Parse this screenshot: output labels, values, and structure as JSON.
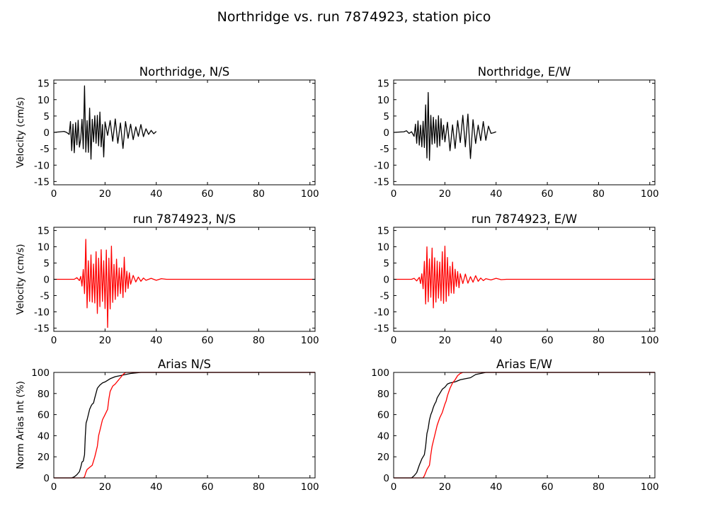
{
  "figure": {
    "title": "Northridge vs. run 7874923, station pico",
    "colors": {
      "recorded": "#000000",
      "simulated": "#ff0000"
    }
  },
  "chart_data": [
    {
      "type": "line",
      "title": "Northridge, N/S",
      "ylabel": "Velocity (cm/s)",
      "xlim": [
        0,
        102
      ],
      "ylim": [
        -16,
        16
      ],
      "xticks": [
        "0",
        "20",
        "40",
        "60",
        "80",
        "100"
      ],
      "yticks": [
        "15",
        "10",
        "5",
        "0",
        "-5",
        "-10",
        "-15"
      ],
      "series": [
        {
          "color": "#000000",
          "x": [
            0,
            4,
            5,
            6,
            6.5,
            7,
            7.5,
            8,
            8.5,
            9,
            9.5,
            10,
            10.5,
            11,
            11.5,
            12,
            12.5,
            13,
            13.5,
            14,
            14.5,
            15,
            15.5,
            16,
            16.5,
            17,
            17.5,
            18,
            18.5,
            19,
            19.5,
            20,
            21,
            22,
            23,
            24,
            25,
            26,
            27,
            28,
            29,
            30,
            31,
            32,
            33,
            34,
            35,
            36,
            37,
            38,
            39,
            40
          ],
          "y": [
            0,
            0.3,
            0,
            -0.6,
            3.3,
            -5.6,
            2.5,
            -6.2,
            3,
            -3.8,
            3.7,
            -4.5,
            -2,
            4,
            -5,
            14.2,
            -6,
            3.6,
            -6.1,
            7.4,
            -8.2,
            4,
            -2.9,
            5.1,
            -3.3,
            5.2,
            -4.1,
            6.2,
            -4.4,
            2.4,
            -7.5,
            3.2,
            -0.9,
            3.6,
            -2.7,
            4.1,
            -3.3,
            2.9,
            -4.9,
            3.3,
            -1.8,
            2.5,
            -2.2,
            1.7,
            -1.2,
            2.4,
            -1.3,
            1.1,
            -0.6,
            0.6,
            -0.4,
            0.3
          ]
        }
      ]
    },
    {
      "type": "line",
      "title": "Northridge, E/W",
      "ylabel": "",
      "xlim": [
        0,
        102
      ],
      "ylim": [
        -16,
        16
      ],
      "xticks": [
        "0",
        "20",
        "40",
        "60",
        "80",
        "100"
      ],
      "yticks": [
        "15",
        "10",
        "5",
        "0",
        "-5",
        "-10",
        "-15"
      ],
      "series": [
        {
          "color": "#000000",
          "x": [
            0,
            4,
            5,
            6,
            7,
            8,
            8.5,
            9,
            9.5,
            10,
            10.5,
            11,
            11.5,
            12,
            12.5,
            13,
            13.5,
            14,
            14.5,
            15,
            15.5,
            16,
            16.5,
            17,
            17.5,
            18,
            18.5,
            19,
            19.5,
            20,
            21,
            22,
            23,
            24,
            25,
            26,
            27,
            28,
            29,
            30,
            31,
            32,
            33,
            34,
            35,
            36,
            37,
            38,
            39,
            40
          ],
          "y": [
            0,
            0.2,
            0.5,
            -0.3,
            0.2,
            -1.2,
            2.5,
            -3.3,
            3.5,
            -3.9,
            2.2,
            -4.4,
            3.4,
            -4.6,
            8.4,
            -7.8,
            12.2,
            -8.5,
            5.2,
            -3.6,
            4.6,
            -3.3,
            3.9,
            -4.5,
            5.1,
            -4.1,
            4.2,
            -2.2,
            2.2,
            -2.9,
            3.1,
            -5.6,
            2.3,
            -4.9,
            3.6,
            -3.1,
            5.2,
            -4.4,
            5.6,
            -8,
            3.9,
            -3.4,
            2.2,
            -2.5,
            3.3,
            -2.4,
            1.9,
            -0.3,
            -0.1,
            0.2
          ]
        }
      ]
    },
    {
      "type": "line",
      "title": "run 7874923, N/S",
      "ylabel": "Velocity (cm/s)",
      "xlim": [
        0,
        102
      ],
      "ylim": [
        -16,
        16
      ],
      "xticks": [
        "0",
        "20",
        "40",
        "60",
        "80",
        "100"
      ],
      "yticks": [
        "15",
        "10",
        "5",
        "0",
        "-5",
        "-10",
        "-15"
      ],
      "series": [
        {
          "color": "#ff0000",
          "x": [
            0,
            8,
            9,
            10,
            10.5,
            11,
            11.5,
            12,
            12.5,
            13,
            13.5,
            14,
            14.5,
            15,
            15.5,
            16,
            16.5,
            17,
            17.5,
            18,
            18.5,
            19,
            19.5,
            20,
            20.5,
            21,
            21.5,
            22,
            22.5,
            23,
            23.5,
            24,
            24.5,
            25,
            25.5,
            26,
            26.5,
            27,
            27.5,
            28,
            28.5,
            29,
            29.5,
            30,
            31,
            32,
            33,
            34,
            35,
            36,
            38,
            40,
            42,
            44,
            50,
            60,
            70,
            80,
            90,
            102
          ],
          "y": [
            0,
            0,
            0.5,
            -0.4,
            0.9,
            -2.1,
            3,
            -4.4,
            12.3,
            -8.8,
            5.7,
            -6.8,
            7.5,
            -7,
            4.7,
            -7.3,
            8.5,
            -10.5,
            6.5,
            -8.4,
            9.1,
            -6.8,
            5.7,
            -9,
            9,
            -14.8,
            6.5,
            -9.1,
            10.2,
            -7.1,
            4.6,
            -6.2,
            6.2,
            -5.2,
            3.5,
            -4.4,
            3.5,
            -5.6,
            6.8,
            -3.9,
            2.5,
            -2.8,
            2,
            -1.5,
            1.2,
            -0.8,
            0.7,
            -0.6,
            0.4,
            -0.3,
            0.3,
            -0.3,
            0.2,
            0,
            0,
            0,
            0,
            0,
            0,
            0
          ]
        }
      ]
    },
    {
      "type": "line",
      "title": "run 7874923, E/W",
      "ylabel": "",
      "xlim": [
        0,
        102
      ],
      "ylim": [
        -16,
        16
      ],
      "xticks": [
        "0",
        "20",
        "40",
        "60",
        "80",
        "100"
      ],
      "yticks": [
        "15",
        "10",
        "5",
        "0",
        "-5",
        "-10",
        "-15"
      ],
      "series": [
        {
          "color": "#ff0000",
          "x": [
            0,
            7,
            8,
            9,
            10,
            10.5,
            11,
            11.5,
            12,
            12.5,
            13,
            13.5,
            14,
            14.5,
            15,
            15.5,
            16,
            16.5,
            17,
            17.5,
            18,
            18.5,
            19,
            19.5,
            20,
            20.5,
            21,
            21.5,
            22,
            22.5,
            23,
            23.5,
            24,
            24.5,
            25,
            25.5,
            26,
            27,
            28,
            29,
            30,
            31,
            32,
            33,
            34,
            35,
            36,
            38,
            40,
            42,
            44,
            50,
            60,
            80,
            102
          ],
          "y": [
            0,
            0,
            0.3,
            -0.5,
            0.6,
            -1.3,
            1.7,
            -2.9,
            5.5,
            -7.6,
            10,
            -6.9,
            6.3,
            -5.5,
            9.6,
            -8.8,
            6.6,
            -7,
            5.6,
            -5.8,
            5.3,
            -6.6,
            8.5,
            -7.4,
            10.2,
            -6.8,
            6.7,
            -5.1,
            4,
            -4.2,
            5.3,
            -4.3,
            3.1,
            -2.2,
            2.4,
            -2.6,
            1.7,
            -1.3,
            1.6,
            -1.2,
            0.8,
            -0.9,
            1.1,
            -0.6,
            0.4,
            -0.4,
            0.2,
            -0.2,
            0.3,
            -0.1,
            0,
            0,
            0,
            0,
            0
          ]
        }
      ]
    },
    {
      "type": "line",
      "title": "Arias N/S",
      "ylabel": "Norm Arias Int (%)",
      "xlim": [
        0,
        102
      ],
      "ylim": [
        0,
        100
      ],
      "xticks": [
        "0",
        "20",
        "40",
        "60",
        "80",
        "100"
      ],
      "yticks": [
        "100",
        "80",
        "60",
        "40",
        "20",
        "0"
      ],
      "series": [
        {
          "name": "",
          "color": "#000000",
          "x": [
            0,
            7,
            8,
            9,
            10,
            10.5,
            11,
            11.5,
            12,
            12.3,
            12.6,
            13,
            13.5,
            14,
            14.5,
            15,
            15.5,
            16,
            17,
            18,
            19,
            20,
            22,
            24,
            26,
            28,
            30,
            32,
            34,
            36,
            40,
            102
          ],
          "y": [
            0,
            0,
            1,
            3,
            6,
            10,
            15,
            16,
            22,
            40,
            52,
            55,
            60,
            65,
            68,
            70,
            71,
            76,
            85,
            88,
            90,
            91,
            94,
            96,
            97,
            98,
            99,
            99.5,
            100,
            100,
            100,
            100
          ]
        },
        {
          "name": "",
          "color": "#ff0000",
          "x": [
            0,
            11.5,
            12,
            12.5,
            13,
            14,
            15,
            16,
            17,
            17.5,
            18,
            19,
            20,
            21,
            21.5,
            22,
            23,
            24,
            25,
            26,
            27,
            28,
            29,
            30,
            36,
            40,
            102
          ],
          "y": [
            0,
            0,
            1,
            5,
            8,
            10,
            12,
            20,
            30,
            40,
            45,
            55,
            60,
            65,
            75,
            82,
            87,
            89,
            92,
            95,
            98,
            100,
            100,
            100,
            100,
            100,
            100
          ]
        }
      ]
    },
    {
      "type": "line",
      "title": "Arias E/W",
      "ylabel": "",
      "xlim": [
        0,
        102
      ],
      "ylim": [
        0,
        100
      ],
      "xticks": [
        "0",
        "20",
        "40",
        "60",
        "80",
        "100"
      ],
      "yticks": [
        "100",
        "80",
        "60",
        "40",
        "20",
        "0"
      ],
      "series": [
        {
          "name": "",
          "color": "#000000",
          "x": [
            0,
            7,
            8,
            9,
            10,
            11,
            12,
            12.5,
            13,
            13.5,
            14,
            14.5,
            15,
            15.5,
            16,
            16.5,
            17,
            18,
            19,
            20,
            21,
            22,
            24,
            26,
            28,
            30,
            32,
            34,
            36,
            40,
            102
          ],
          "y": [
            0,
            0,
            2,
            5,
            12,
            18,
            22,
            30,
            42,
            47,
            55,
            60,
            63,
            67,
            70,
            72,
            76,
            80,
            84,
            86,
            89,
            90,
            91,
            93,
            94,
            95,
            98,
            99,
            100,
            100,
            100
          ]
        },
        {
          "name": "",
          "color": "#ff0000",
          "x": [
            0,
            11.5,
            12,
            13,
            14,
            14.5,
            15,
            16,
            17,
            18,
            19,
            20,
            20.5,
            21,
            22,
            23,
            24,
            25,
            26,
            27,
            28,
            30,
            40,
            102
          ],
          "y": [
            0,
            0,
            2,
            8,
            12,
            22,
            30,
            40,
            50,
            57,
            62,
            70,
            73,
            78,
            85,
            90,
            93,
            97,
            99,
            100,
            100,
            100,
            100,
            100
          ]
        }
      ]
    }
  ]
}
